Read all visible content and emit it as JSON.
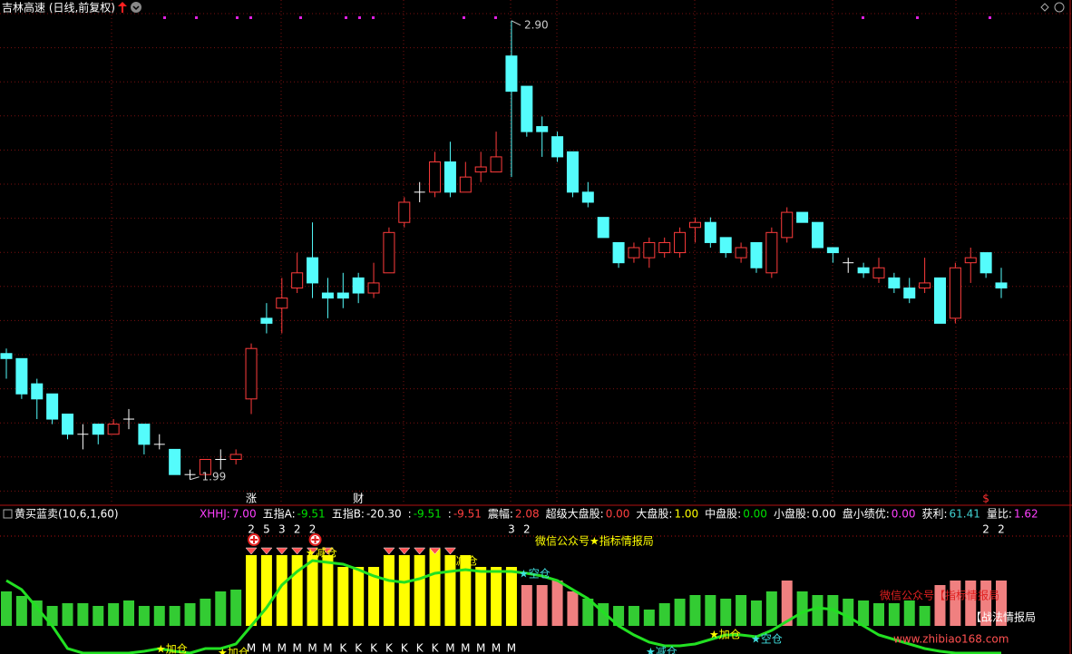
{
  "chart_data": [
    {
      "type": "candlestick",
      "title": "吉林高速 (日线,前复权)",
      "ylim": [
        1.95,
        2.95
      ],
      "up_color": "#ff3c3c",
      "down_color": "#54fcfc",
      "flat_color": "#ffffff",
      "max_label": "2.90",
      "min_label": "1.99",
      "open": [
        2.24,
        2.23,
        2.18,
        2.16,
        2.12,
        2.08,
        2.1,
        2.08,
        2.11,
        2.1,
        2.06,
        2.05,
        2.0,
        2.0,
        2.03,
        2.03,
        2.15,
        2.31,
        2.33,
        2.37,
        2.43,
        2.36,
        2.36,
        2.39,
        2.36,
        2.4,
        2.5,
        2.56,
        2.56,
        2.62,
        2.56,
        2.6,
        2.6,
        2.83,
        2.77,
        2.69,
        2.67,
        2.64,
        2.56,
        2.51,
        2.46,
        2.43,
        2.43,
        2.44,
        2.44,
        2.49,
        2.5,
        2.47,
        2.43,
        2.46,
        2.4,
        2.47,
        2.52,
        2.5,
        2.45,
        2.42,
        2.41,
        2.39,
        2.39,
        2.37,
        2.37,
        2.39,
        2.31,
        2.42,
        2.44,
        2.38
      ],
      "high": [
        2.25,
        2.23,
        2.19,
        2.16,
        2.12,
        2.1,
        2.1,
        2.11,
        2.13,
        2.1,
        2.08,
        2.05,
        2.01,
        2.03,
        2.05,
        2.05,
        2.26,
        2.34,
        2.39,
        2.44,
        2.5,
        2.39,
        2.4,
        2.4,
        2.42,
        2.49,
        2.55,
        2.58,
        2.64,
        2.66,
        2.62,
        2.64,
        2.68,
        2.9,
        2.77,
        2.71,
        2.68,
        2.64,
        2.58,
        2.51,
        2.46,
        2.46,
        2.47,
        2.47,
        2.49,
        2.51,
        2.51,
        2.47,
        2.46,
        2.46,
        2.49,
        2.53,
        2.52,
        2.5,
        2.45,
        2.43,
        2.42,
        2.43,
        2.4,
        2.39,
        2.43,
        2.39,
        2.42,
        2.45,
        2.44,
        2.41
      ],
      "low": [
        2.19,
        2.15,
        2.11,
        2.1,
        2.07,
        2.05,
        2.06,
        2.08,
        2.09,
        2.04,
        2.05,
        2.0,
        1.99,
        2.0,
        2.01,
        2.02,
        2.12,
        2.28,
        2.28,
        2.36,
        2.35,
        2.31,
        2.33,
        2.34,
        2.35,
        2.4,
        2.49,
        2.54,
        2.55,
        2.55,
        2.56,
        2.58,
        2.6,
        2.59,
        2.67,
        2.63,
        2.62,
        2.55,
        2.53,
        2.47,
        2.41,
        2.42,
        2.41,
        2.43,
        2.43,
        2.46,
        2.45,
        2.43,
        2.42,
        2.4,
        2.39,
        2.46,
        2.5,
        2.45,
        2.42,
        2.4,
        2.39,
        2.38,
        2.36,
        2.34,
        2.36,
        2.3,
        2.3,
        2.38,
        2.39,
        2.35
      ],
      "close": [
        2.23,
        2.16,
        2.15,
        2.11,
        2.08,
        2.08,
        2.08,
        2.1,
        2.11,
        2.06,
        2.06,
        2.0,
        2.0,
        2.03,
        2.03,
        2.04,
        2.25,
        2.3,
        2.35,
        2.4,
        2.38,
        2.35,
        2.35,
        2.36,
        2.38,
        2.48,
        2.54,
        2.56,
        2.62,
        2.56,
        2.59,
        2.61,
        2.63,
        2.76,
        2.68,
        2.68,
        2.63,
        2.56,
        2.54,
        2.47,
        2.42,
        2.45,
        2.46,
        2.46,
        2.48,
        2.5,
        2.46,
        2.44,
        2.45,
        2.41,
        2.48,
        2.52,
        2.5,
        2.45,
        2.44,
        2.42,
        2.4,
        2.41,
        2.37,
        2.35,
        2.38,
        2.3,
        2.41,
        2.43,
        2.4,
        2.37
      ],
      "event_markers": [
        null,
        null,
        null,
        null,
        null,
        null,
        null,
        null,
        null,
        null,
        null,
        null,
        null,
        null,
        null,
        null,
        "涨",
        null,
        null,
        null,
        null,
        null,
        null,
        "财",
        null,
        null,
        null,
        null,
        null,
        null,
        null,
        null,
        null,
        null,
        null,
        null,
        null,
        null,
        null,
        null,
        null,
        null,
        null,
        null,
        null,
        null,
        null,
        null,
        null,
        null,
        null,
        null,
        null,
        null,
        null,
        null,
        null,
        null,
        null,
        null,
        null,
        null,
        null,
        null,
        "$",
        null
      ]
    },
    {
      "type": "bar",
      "title": "黄买蓝卖(10,6,1,60)",
      "readouts": [
        {
          "label": "XHHJ:",
          "value": "7.00",
          "color": "#ff40ff"
        },
        {
          "label": "五指A:",
          "value": "-9.51",
          "color": "#00e000"
        },
        {
          "label": "五指B:",
          "value": "-20.30",
          "color": "#ffffff"
        },
        {
          "label": ":",
          "value": "-9.51",
          "color": "#00e000"
        },
        {
          "label": ":",
          "value": "-9.51",
          "color": "#ff4040"
        },
        {
          "label": "震幅:",
          "value": "2.08",
          "color": "#ff4040"
        },
        {
          "label": "超级大盘股:",
          "value": "0.00",
          "color": "#ff4040"
        },
        {
          "label": "大盘股:",
          "value": "1.00",
          "color": "#ffff00"
        },
        {
          "label": "中盘股:",
          "value": "0.00",
          "color": "#00e000"
        },
        {
          "label": "小盘股:",
          "value": "0.00",
          "color": "#ffffff"
        },
        {
          "label": "盘小绩优:",
          "value": "0.00",
          "color": "#ff40ff"
        },
        {
          "label": "获利:",
          "value": "61.41",
          "color": "#40d0d0"
        },
        {
          "label": "量比:",
          "value": "1.62",
          "color": "#ff40ff"
        }
      ],
      "values": [
        38,
        33,
        28,
        22,
        25,
        25,
        22,
        25,
        28,
        22,
        22,
        22,
        25,
        30,
        38,
        40,
        78,
        78,
        78,
        78,
        78,
        78,
        65,
        65,
        65,
        78,
        78,
        78,
        85,
        78,
        78,
        65,
        65,
        65,
        45,
        45,
        50,
        38,
        30,
        25,
        22,
        22,
        18,
        25,
        30,
        34,
        34,
        30,
        34,
        28,
        38,
        50,
        38,
        34,
        34,
        30,
        28,
        25,
        25,
        28,
        22,
        45,
        50,
        50,
        50,
        50
      ],
      "colors": [
        "#33cc33",
        "#33cc33",
        "#33cc33",
        "#33cc33",
        "#33cc33",
        "#33cc33",
        "#33cc33",
        "#33cc33",
        "#33cc33",
        "#33cc33",
        "#33cc33",
        "#33cc33",
        "#33cc33",
        "#33cc33",
        "#33cc33",
        "#33cc33",
        "#ffff00",
        "#ffff00",
        "#ffff00",
        "#ffff00",
        "#ffff00",
        "#ffff00",
        "#ffff00",
        "#ffff00",
        "#ffff00",
        "#ffff00",
        "#ffff00",
        "#ffff00",
        "#ffff00",
        "#ffff00",
        "#ffff00",
        "#ffff00",
        "#ffff00",
        "#ffff00",
        "#f08080",
        "#f08080",
        "#f08080",
        "#f08080",
        "#33cc33",
        "#33cc33",
        "#33cc33",
        "#33cc33",
        "#33cc33",
        "#33cc33",
        "#33cc33",
        "#33cc33",
        "#33cc33",
        "#33cc33",
        "#33cc33",
        "#33cc33",
        "#33cc33",
        "#f08080",
        "#33cc33",
        "#33cc33",
        "#33cc33",
        "#33cc33",
        "#33cc33",
        "#33cc33",
        "#33cc33",
        "#33cc33",
        "#33cc33",
        "#f08080",
        "#f08080",
        "#f08080",
        "#f08080",
        "#f08080"
      ],
      "line_color": "#22e022",
      "line_values": [
        50,
        40,
        20,
        0,
        -25,
        -30,
        -30,
        -30,
        -30,
        -28,
        -25,
        -28,
        -30,
        -25,
        -25,
        -20,
        0,
        20,
        45,
        60,
        72,
        70,
        68,
        62,
        55,
        50,
        48,
        52,
        58,
        60,
        62,
        60,
        60,
        60,
        58,
        55,
        50,
        40,
        30,
        15,
        0,
        -10,
        -18,
        -22,
        -22,
        -20,
        -15,
        -10,
        -10,
        -12,
        -5,
        5,
        15,
        20,
        18,
        10,
        0,
        -10,
        -15,
        -20,
        -25,
        -28,
        -30,
        -30,
        -30,
        -30
      ],
      "signal_counts": [
        null,
        null,
        null,
        null,
        null,
        null,
        null,
        null,
        null,
        null,
        null,
        null,
        null,
        null,
        null,
        null,
        "2",
        "5",
        "3",
        "2",
        "2",
        null,
        null,
        null,
        null,
        null,
        null,
        null,
        null,
        null,
        null,
        null,
        null,
        "3",
        "2",
        null,
        null,
        null,
        null,
        null,
        null,
        null,
        null,
        null,
        null,
        null,
        null,
        null,
        null,
        null,
        null,
        null,
        null,
        null,
        null,
        null,
        null,
        null,
        null,
        null,
        null,
        null,
        null,
        null,
        "2",
        "2"
      ],
      "bottom_marks": [
        null,
        null,
        null,
        null,
        null,
        null,
        null,
        null,
        null,
        null,
        null,
        null,
        null,
        null,
        null,
        null,
        "M",
        "M",
        "M",
        "M",
        "M",
        "M",
        "K",
        "K",
        "K",
        "K",
        "K",
        "K",
        "K",
        "M",
        "M",
        "M",
        "M",
        "M",
        null,
        null,
        null,
        null,
        null,
        null,
        null,
        null,
        null,
        null,
        null,
        null,
        null,
        null,
        null,
        null,
        null,
        null,
        null,
        null,
        null,
        null,
        null,
        null,
        null,
        null,
        null,
        null,
        null,
        null,
        null,
        null
      ],
      "annotations": [
        {
          "text": "★加仓",
          "color": "#ffff00"
        },
        {
          "text": "★加仓",
          "color": "#ffff00"
        },
        {
          "text": "★减仓",
          "color": "#ffff00"
        },
        {
          "text": "★减仓",
          "color": "#ffff00"
        },
        {
          "text": "★空仓",
          "color": "#40e0e0"
        },
        {
          "text": "★加仓",
          "color": "#ffff00"
        },
        {
          "text": "★空仓",
          "color": "#40e0e0"
        },
        {
          "text": "★减仓",
          "color": "#40e0e0"
        },
        {
          "text": "微信公众号★指标情报局",
          "color": "#ffff00"
        }
      ],
      "watermark": [
        "微信公众号【指标情报局",
        "【战法情报局",
        "www.zhibiao168.com"
      ]
    }
  ]
}
